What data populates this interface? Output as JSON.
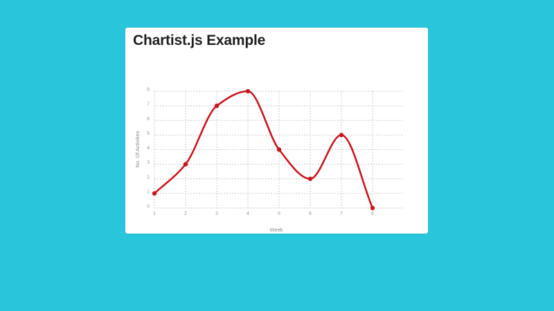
{
  "page": {
    "title": "Chartist.js Example"
  },
  "colors": {
    "background": "#29c6db",
    "card": "#ffffff",
    "series": "#c8161d"
  },
  "chart_data": {
    "type": "line",
    "title": "",
    "xlabel": "Week",
    "ylabel": "No. Of Activities",
    "x": [
      1,
      2,
      3,
      4,
      5,
      6,
      7,
      8
    ],
    "xticks": [
      "1",
      "2",
      "3",
      "4",
      "5",
      "6",
      "7",
      "8"
    ],
    "yticks": [
      "0",
      "1",
      "2",
      "3",
      "4",
      "5",
      "6",
      "7",
      "8"
    ],
    "ylim": [
      0,
      8
    ],
    "grid": true,
    "smooth": true,
    "series": [
      {
        "values": [
          1,
          3,
          7,
          8,
          4,
          2,
          5,
          0
        ]
      }
    ]
  }
}
